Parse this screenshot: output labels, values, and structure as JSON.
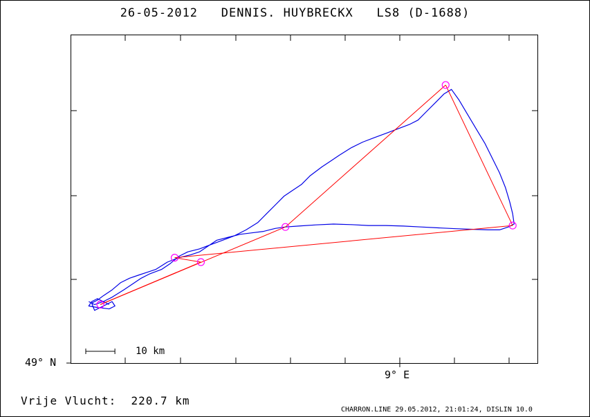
{
  "title": {
    "date": "26-05-2012",
    "pilot": "DENNIS. HUYBRECKX",
    "glider": "LS8 (D-1688)"
  },
  "axes": {
    "y_label": "49° N",
    "x_label": "9° E"
  },
  "scale_bar": {
    "label": "10 km",
    "km": 10
  },
  "footer": {
    "distance_label": "Vrije Vlucht:",
    "distance_value": "220.7 km",
    "credit": "CHARRON.LINE 29.05.2012, 21:01:24, DISLIN 10.0"
  },
  "colors": {
    "track": "#0000e6",
    "task": "#ff0000",
    "turnpoint": "#ff00ff",
    "frame": "#000000"
  },
  "chart_data": {
    "type": "map",
    "units": "km",
    "x_range": [
      -10,
      150
    ],
    "y_range": [
      -20,
      92
    ],
    "turnpoints": [
      {
        "x": 0,
        "y": 0
      },
      {
        "x": 25.5,
        "y": 16
      },
      {
        "x": 34.5,
        "y": 14.5
      },
      {
        "x": 63.5,
        "y": 26.5
      },
      {
        "x": 118.5,
        "y": 75
      },
      {
        "x": 141.5,
        "y": 27
      }
    ],
    "task_legs": [
      [
        0,
        3
      ],
      [
        3,
        4
      ],
      [
        4,
        5
      ],
      [
        5,
        1
      ],
      [
        1,
        2
      ],
      [
        2,
        0
      ]
    ],
    "track": [
      [
        -4,
        1
      ],
      [
        -2,
        0
      ],
      [
        1,
        1
      ],
      [
        4,
        2.5
      ],
      [
        8,
        5
      ],
      [
        11,
        7
      ],
      [
        14,
        9
      ],
      [
        17,
        10.5
      ],
      [
        21,
        12
      ],
      [
        24,
        14
      ],
      [
        27,
        16.5
      ],
      [
        30,
        18
      ],
      [
        34,
        19
      ],
      [
        38,
        20.5
      ],
      [
        42,
        22
      ],
      [
        46,
        23.5
      ],
      [
        50,
        25.5
      ],
      [
        54,
        28
      ],
      [
        57,
        31
      ],
      [
        60,
        34
      ],
      [
        63,
        37
      ],
      [
        66,
        39
      ],
      [
        69,
        41
      ],
      [
        72,
        44
      ],
      [
        76,
        47
      ],
      [
        79,
        49
      ],
      [
        82,
        51
      ],
      [
        86,
        53.5
      ],
      [
        90,
        55.5
      ],
      [
        94,
        57
      ],
      [
        98,
        58.5
      ],
      [
        102,
        60
      ],
      [
        106,
        61.5
      ],
      [
        109,
        63
      ],
      [
        112,
        66
      ],
      [
        115,
        69
      ],
      [
        118,
        72
      ],
      [
        120.5,
        73.5
      ],
      [
        123,
        70
      ],
      [
        126,
        65
      ],
      [
        129,
        60
      ],
      [
        132,
        55
      ],
      [
        134,
        51
      ],
      [
        137,
        45
      ],
      [
        139,
        40
      ],
      [
        140.5,
        35
      ],
      [
        141.5,
        31
      ],
      [
        142,
        27.5
      ],
      [
        140,
        26.5
      ],
      [
        137,
        25.5
      ],
      [
        133,
        25.5
      ],
      [
        128,
        25.7
      ],
      [
        122,
        25.9
      ],
      [
        116,
        26.2
      ],
      [
        110,
        26.5
      ],
      [
        104,
        26.8
      ],
      [
        98,
        27
      ],
      [
        92,
        27
      ],
      [
        86,
        27.3
      ],
      [
        80,
        27.5
      ],
      [
        74,
        27.2
      ],
      [
        68,
        26.8
      ],
      [
        63.5,
        26.5
      ],
      [
        60,
        26
      ],
      [
        56,
        25
      ],
      [
        52,
        24.5
      ],
      [
        48,
        24
      ],
      [
        44,
        23
      ],
      [
        40,
        22
      ],
      [
        37,
        20
      ],
      [
        34,
        18
      ],
      [
        31,
        17
      ],
      [
        27,
        16
      ],
      [
        23,
        14.5
      ],
      [
        19,
        12
      ],
      [
        16,
        11
      ],
      [
        13,
        10
      ],
      [
        10,
        9
      ],
      [
        7,
        7.5
      ],
      [
        4,
        5
      ],
      [
        1,
        3
      ],
      [
        -1,
        1.5
      ],
      [
        -3,
        0.5
      ],
      [
        -2,
        -2
      ],
      [
        0,
        -1
      ],
      [
        2,
        0
      ],
      [
        4,
        1
      ],
      [
        5,
        -0.5
      ],
      [
        3,
        -1.5
      ],
      [
        -1,
        -1
      ],
      [
        -4,
        -0.5
      ],
      [
        -3,
        1
      ],
      [
        -1,
        2
      ],
      [
        1,
        1
      ],
      [
        3,
        0
      ]
    ]
  }
}
